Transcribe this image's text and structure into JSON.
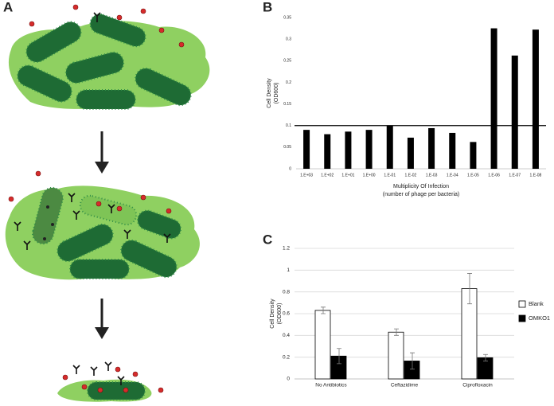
{
  "panel_labels": [
    "A",
    "B",
    "C"
  ],
  "chart_data": [
    {
      "type": "bar",
      "ylabel": [
        "Cell Density",
        "(OD600)"
      ],
      "xlabel": [
        "Multiplicity Of Infection",
        "(number of phage per bacteria)"
      ],
      "categories": [
        "1.E+03",
        "1.E+02",
        "1.E+01",
        "1.E+00",
        "1.E-01",
        "1.E-02",
        "1.E-03",
        "1.E-04",
        "1.E-05",
        "1.E-06",
        "1.E-07",
        "1.E-08"
      ],
      "values": [
        0.09,
        0.08,
        0.086,
        0.09,
        0.1,
        0.072,
        0.094,
        0.083,
        0.062,
        0.325,
        0.262,
        0.322
      ],
      "color": "#000000",
      "ylim": [
        0,
        0.35
      ],
      "yticks": [
        0,
        0.05,
        0.1,
        0.15,
        0.2,
        0.25,
        0.3,
        0.35
      ],
      "reference_line": 0.1,
      "grid": false
    },
    {
      "type": "bar",
      "ylabel": [
        "Cell Density",
        "(OD600)"
      ],
      "categories": [
        "No Antibiotics",
        "Ceftazidime",
        "Ciprofloxacin"
      ],
      "series": [
        {
          "name": "Blank",
          "color": "#ffffff",
          "values": [
            0.63,
            0.43,
            0.83
          ],
          "errors": [
            0.03,
            0.03,
            0.14
          ]
        },
        {
          "name": "OMKO1",
          "color": "#000000",
          "values": [
            0.21,
            0.165,
            0.195
          ],
          "errors": [
            0.07,
            0.075,
            0.03
          ]
        }
      ],
      "ylim": [
        0,
        1.2
      ],
      "yticks": [
        0,
        0.2,
        0.4,
        0.6,
        0.8,
        1,
        1.2
      ],
      "grid": true,
      "legend": "right"
    }
  ]
}
